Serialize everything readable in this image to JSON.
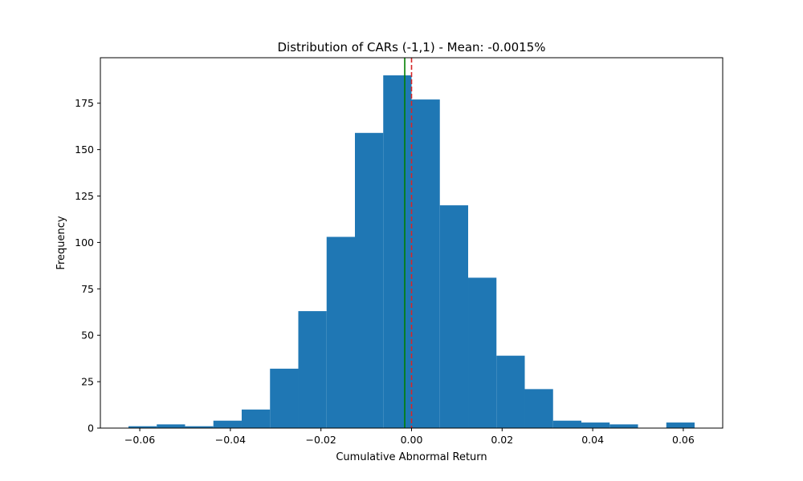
{
  "chart_data": {
    "type": "bar",
    "title": "Distribution of CARs (-1,1) - Mean: -0.0015%",
    "xlabel": "Cumulative Abnormal Return",
    "ylabel": "Frequency",
    "xlim": [
      -0.0687,
      0.0687
    ],
    "ylim": [
      0,
      199.5
    ],
    "grid": false,
    "bins": {
      "start": -0.0625,
      "width": 0.00625,
      "counts": [
        1,
        2,
        1,
        4,
        10,
        32,
        63,
        103,
        159,
        190,
        177,
        120,
        81,
        39,
        21,
        4,
        3,
        2,
        0,
        3
      ]
    },
    "bar_color": "#1f77b4",
    "reference_lines": [
      {
        "x": -0.0015,
        "color": "#008000",
        "style": "solid"
      },
      {
        "x": 0.0,
        "color": "#d62728",
        "style": "dashed"
      }
    ],
    "xticks": [
      {
        "value": -0.06,
        "label": "−0.06"
      },
      {
        "value": -0.04,
        "label": "−0.04"
      },
      {
        "value": -0.02,
        "label": "−0.02"
      },
      {
        "value": 0.0,
        "label": "0.00"
      },
      {
        "value": 0.02,
        "label": "0.02"
      },
      {
        "value": 0.04,
        "label": "0.04"
      },
      {
        "value": 0.06,
        "label": "0.06"
      }
    ],
    "yticks": [
      {
        "value": 0,
        "label": "0"
      },
      {
        "value": 25,
        "label": "25"
      },
      {
        "value": 50,
        "label": "50"
      },
      {
        "value": 75,
        "label": "75"
      },
      {
        "value": 100,
        "label": "100"
      },
      {
        "value": 125,
        "label": "125"
      },
      {
        "value": 150,
        "label": "150"
      },
      {
        "value": 175,
        "label": "175"
      }
    ]
  }
}
